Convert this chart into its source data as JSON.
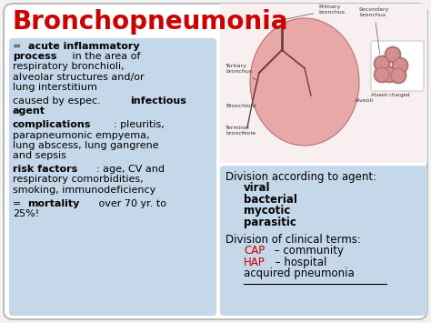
{
  "bg_color": "#f2f2f2",
  "card_bg": "#ffffff",
  "title": "Bronchopneumonia",
  "title_color": "#cc0000",
  "title_fontsize": 20,
  "left_box_color": "#c5d8ea",
  "right_bottom_box_color": "#c5d8ea",
  "left_blocks": [
    [
      {
        "text": "= ",
        "bold": false
      },
      {
        "text": "acute inflammatory",
        "bold": true
      },
      {
        "newline": true
      },
      {
        "text": "process",
        "bold": true
      },
      {
        "text": " in the area of",
        "bold": false
      },
      {
        "newline": true
      },
      {
        "text": "respiratory bronchioli,",
        "bold": false
      },
      {
        "newline": true
      },
      {
        "text": "alveolar structures and/or",
        "bold": false
      },
      {
        "newline": true
      },
      {
        "text": "lung interstitium",
        "bold": false
      }
    ],
    [
      {
        "text": "caused by espec. ",
        "bold": false
      },
      {
        "text": "infectious",
        "bold": true
      },
      {
        "newline": true
      },
      {
        "text": "agent",
        "bold": true
      }
    ],
    [
      {
        "text": "complications",
        "bold": true
      },
      {
        "text": ": pleuritis,",
        "bold": false
      },
      {
        "newline": true
      },
      {
        "text": "parapneumonic empyema,",
        "bold": false
      },
      {
        "newline": true
      },
      {
        "text": "lung abscess, lung gangrene",
        "bold": false
      },
      {
        "newline": true
      },
      {
        "text": "and sepsis",
        "bold": false
      }
    ],
    [
      {
        "text": "risk factors",
        "bold": true
      },
      {
        "text": ": age, CV and",
        "bold": false
      },
      {
        "newline": true
      },
      {
        "text": "respiratory comorbidities,",
        "bold": false
      },
      {
        "newline": true
      },
      {
        "text": "smoking, immunodeficiency",
        "bold": false
      }
    ],
    [
      {
        "text": "= ",
        "bold": false
      },
      {
        "text": "mortality",
        "bold": true
      },
      {
        "text": " over 70 yr. to",
        "bold": false
      },
      {
        "newline": true
      },
      {
        "text": "25%!",
        "bold": false
      }
    ]
  ],
  "right_lines": [
    {
      "text": "Division according to agent:",
      "bold": false,
      "color": "#000000",
      "indent": 0
    },
    {
      "text": "viral",
      "bold": true,
      "color": "#000000",
      "indent": 20
    },
    {
      "text": "bacterial",
      "bold": true,
      "color": "#000000",
      "indent": 20
    },
    {
      "text": "mycotic",
      "bold": true,
      "color": "#000000",
      "indent": 20
    },
    {
      "text": "parasitic",
      "bold": true,
      "color": "#000000",
      "indent": 20
    },
    {
      "text": "",
      "bold": false,
      "color": "#000000",
      "indent": 0
    },
    {
      "text": "Division of clinical terms:",
      "bold": false,
      "color": "#000000",
      "indent": 0
    },
    {
      "text": "CAP",
      "bold": false,
      "color": "#cc0000",
      "indent": 20,
      "suffix": " – community",
      "suffix_color": "#000000"
    },
    {
      "text": "HAP",
      "bold": false,
      "color": "#cc0000",
      "indent": 20,
      "suffix": " – hospital",
      "suffix_color": "#000000"
    },
    {
      "text": "acquired pneumonia",
      "bold": false,
      "color": "#000000",
      "indent": 20,
      "underline": true
    }
  ],
  "font_size_main": 8.0,
  "font_size_right": 8.5
}
